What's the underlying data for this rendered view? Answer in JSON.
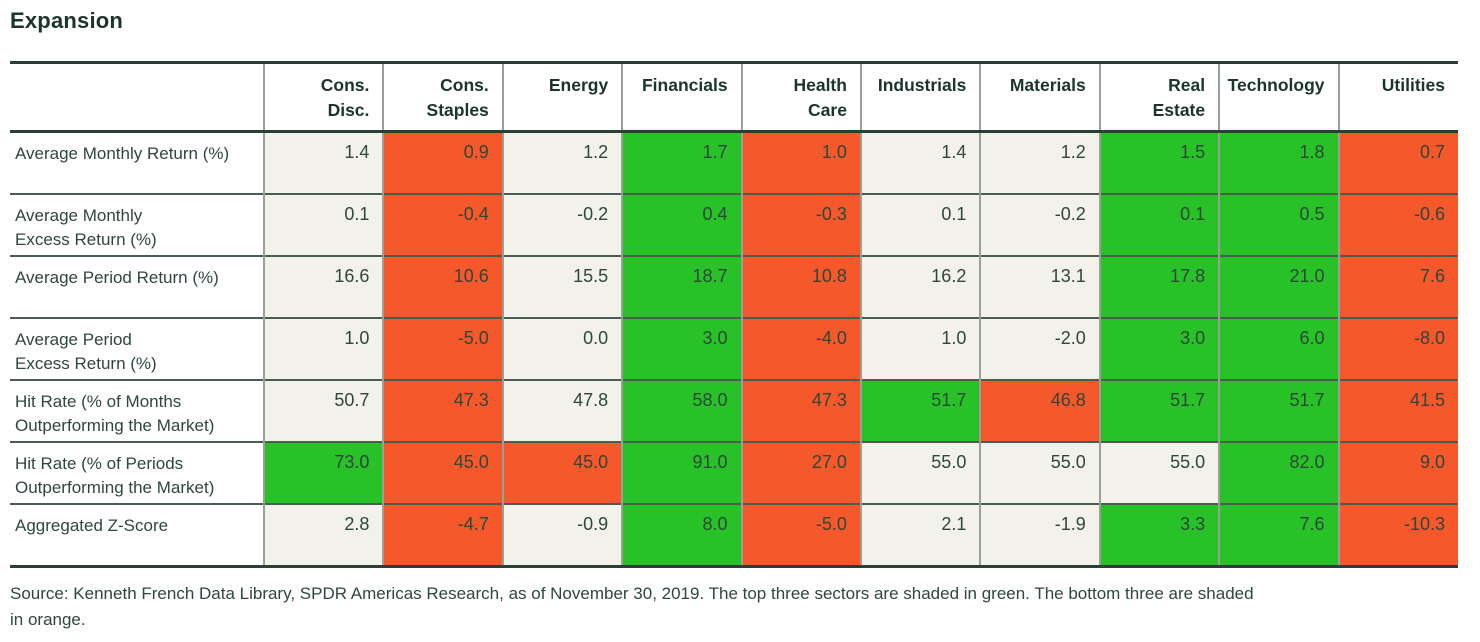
{
  "title": "Expansion",
  "colors": {
    "green": "#28c128",
    "orange": "#f4582b",
    "neutral": "#f2f1ea",
    "border_dark": "#2b4034",
    "grid_h": "#4c5c51",
    "grid_v": "#97a198",
    "text": "#2f463b",
    "text_dark": "#1b352a"
  },
  "chart_data": {
    "type": "table",
    "title": "Expansion",
    "categories": [
      "Cons.\nDisc.",
      "Cons.\nStaples",
      "Energy",
      "Financials",
      "Health\nCare",
      "Industrials",
      "Materials",
      "Real\nEstate",
      "Technology",
      "Utilities"
    ],
    "shading_legend": "green = top three sectors, orange = bottom three sectors",
    "rows": [
      {
        "label": "Average Monthly Return (%)",
        "values": [
          1.4,
          0.9,
          1.2,
          1.7,
          1.0,
          1.4,
          1.2,
          1.5,
          1.8,
          0.7
        ],
        "shades": [
          "none",
          "orange",
          "none",
          "green",
          "orange",
          "none",
          "none",
          "green",
          "green",
          "orange"
        ]
      },
      {
        "label": "Average Monthly\nExcess Return (%)",
        "values": [
          0.1,
          -0.4,
          -0.2,
          0.4,
          -0.3,
          0.1,
          -0.2,
          0.1,
          0.5,
          -0.6
        ],
        "shades": [
          "none",
          "orange",
          "none",
          "green",
          "orange",
          "none",
          "none",
          "green",
          "green",
          "orange"
        ]
      },
      {
        "label": "Average Period Return (%)",
        "values": [
          16.6,
          10.6,
          15.5,
          18.7,
          10.8,
          16.2,
          13.1,
          17.8,
          21.0,
          7.6
        ],
        "shades": [
          "none",
          "orange",
          "none",
          "green",
          "orange",
          "none",
          "none",
          "green",
          "green",
          "orange"
        ]
      },
      {
        "label": "Average Period\nExcess Return (%)",
        "values": [
          1.0,
          -5.0,
          0.0,
          3.0,
          -4.0,
          1.0,
          -2.0,
          3.0,
          6.0,
          -8.0
        ],
        "shades": [
          "none",
          "orange",
          "none",
          "green",
          "orange",
          "none",
          "none",
          "green",
          "green",
          "orange"
        ]
      },
      {
        "label": "Hit Rate (% of Months\nOutperforming the Market)",
        "values": [
          50.7,
          47.3,
          47.8,
          58.0,
          47.3,
          51.7,
          46.8,
          51.7,
          51.7,
          41.5
        ],
        "shades": [
          "none",
          "orange",
          "none",
          "green",
          "orange",
          "green",
          "orange",
          "green",
          "green",
          "orange"
        ]
      },
      {
        "label": "Hit Rate (% of Periods\nOutperforming the Market)",
        "values": [
          73.0,
          45.0,
          45.0,
          91.0,
          27.0,
          55.0,
          55.0,
          55.0,
          82.0,
          9.0
        ],
        "shades": [
          "green",
          "orange",
          "orange",
          "green",
          "orange",
          "none",
          "none",
          "none",
          "green",
          "orange"
        ]
      },
      {
        "label": "Aggregated Z-Score",
        "values": [
          2.8,
          -4.7,
          -0.9,
          8.0,
          -5.0,
          2.1,
          -1.9,
          3.3,
          7.6,
          -10.3
        ],
        "shades": [
          "none",
          "orange",
          "none",
          "green",
          "orange",
          "none",
          "none",
          "green",
          "green",
          "orange"
        ]
      }
    ]
  },
  "footer_text": "Source: Kenneth French Data Library, SPDR Americas Research, as of November 30, 2019. The top three sectors are shaded in green. The bottom three are shaded\nin orange."
}
